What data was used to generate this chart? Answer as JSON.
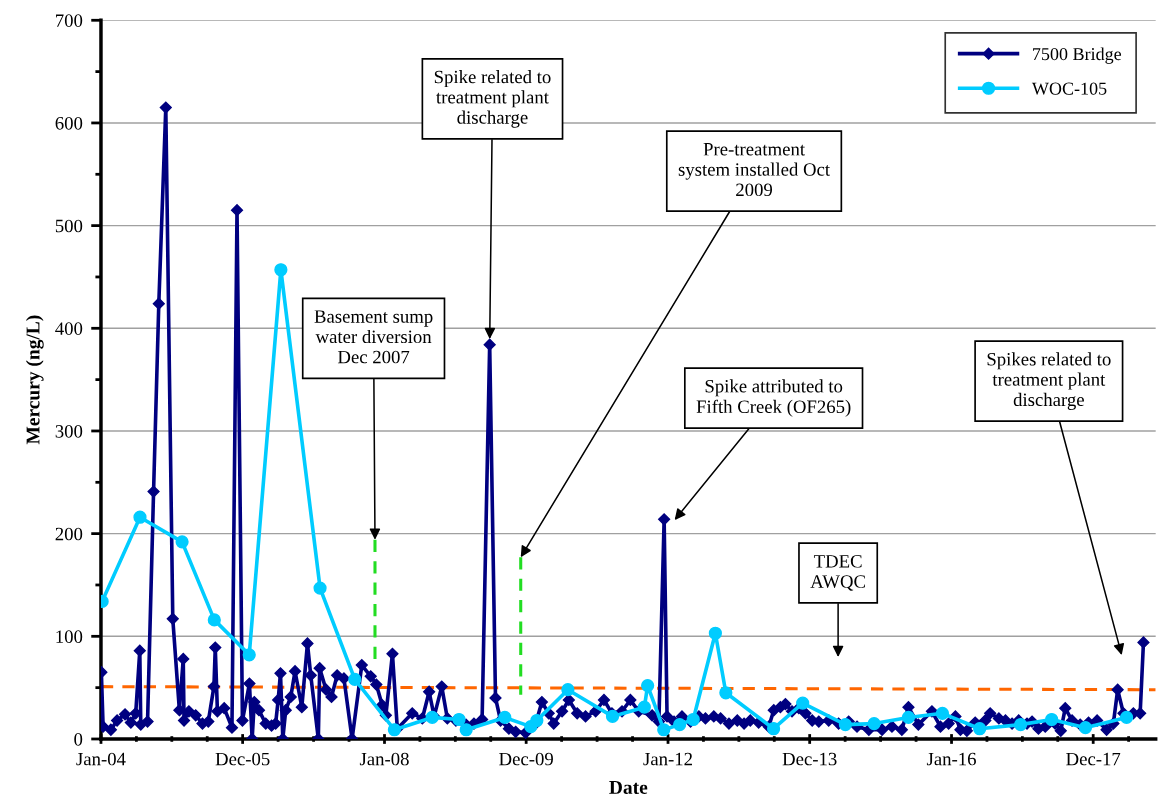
{
  "chart_data": {
    "type": "line",
    "xlabel": "Date",
    "ylabel": "Mercury (ng/L)",
    "xlim": [
      "2004-01-01",
      "2018-11-18"
    ],
    "xticks": [
      {
        "value": "2004-01-01",
        "label": "Jan-04"
      },
      {
        "value": "2005-12-31",
        "label": "Dec-05"
      },
      {
        "value": "2008-01-01",
        "label": "Jan-08"
      },
      {
        "value": "2009-12-31",
        "label": "Dec-09"
      },
      {
        "value": "2012-01-01",
        "label": "Jan-12"
      },
      {
        "value": "2013-12-31",
        "label": "Dec-13"
      },
      {
        "value": "2016-01-01",
        "label": "Jan-16"
      },
      {
        "value": "2017-12-31",
        "label": "Dec-17"
      }
    ],
    "ylim": [
      0,
      700
    ],
    "yticks": [
      0,
      100,
      200,
      300,
      400,
      500,
      600,
      700
    ],
    "grid": "y",
    "legend": "top right",
    "series": [
      {
        "name": "7500 Bridge",
        "color": "#000080",
        "marker": "diamond",
        "line_style": "solid",
        "x": [
          "2004-01-03",
          "2004-01-12",
          "2004-02-21",
          "2004-03-24",
          "2004-05-04",
          "2004-06-03",
          "2004-06-28",
          "2004-07-19",
          "2004-07-24",
          "2004-08-28",
          "2004-09-28",
          "2004-10-25",
          "2004-11-30",
          "2005-01-05",
          "2005-02-08",
          "2005-02-28",
          "2005-03-04",
          "2005-03-29",
          "2005-05-03",
          "2005-06-07",
          "2005-07-07",
          "2005-08-05",
          "2005-08-12",
          "2005-08-23",
          "2005-09-27",
          "2005-11-06",
          "2005-12-02",
          "2005-12-30",
          "2006-02-04",
          "2006-02-18",
          "2006-03-01",
          "2006-03-25",
          "2006-04-29",
          "2006-05-29",
          "2006-06-19",
          "2006-07-02",
          "2006-07-14",
          "2006-07-26",
          "2006-08-10",
          "2006-09-05",
          "2006-09-27",
          "2006-11-01",
          "2006-11-30",
          "2006-12-17",
          "2007-01-25",
          "2007-02-01",
          "2007-03-06",
          "2007-04-03",
          "2007-05-02",
          "2007-06-06",
          "2007-07-18",
          "2007-09-06",
          "2007-10-22",
          "2007-11-20",
          "2007-12-20",
          "2008-01-08",
          "2008-02-11",
          "2008-03-07",
          "2008-05-23",
          "2008-07-14",
          "2008-08-18",
          "2008-09-13",
          "2008-10-22",
          "2008-11-20",
          "2009-01-03",
          "2009-02-24",
          "2009-04-06",
          "2009-05-18",
          "2009-06-26",
          "2009-07-26",
          "2009-08-21",
          "2009-10-03",
          "2009-11-07",
          "2009-12-28",
          "2010-02-18",
          "2010-03-22",
          "2010-04-26",
          "2010-05-22",
          "2010-07-04",
          "2010-08-08",
          "2010-09-20",
          "2010-11-02",
          "2010-12-24",
          "2011-02-05",
          "2011-03-18",
          "2011-05-09",
          "2011-06-21",
          "2011-08-03",
          "2011-10-11",
          "2011-11-15",
          "2011-12-12",
          "2011-12-27",
          "2012-02-01",
          "2012-03-13",
          "2012-04-26",
          "2012-06-08",
          "2012-07-12",
          "2012-08-24",
          "2012-09-28",
          "2012-11-10",
          "2012-12-23",
          "2013-01-27",
          "2013-02-28",
          "2013-04-12",
          "2013-06-03",
          "2013-06-29",
          "2013-08-02",
          "2013-08-28",
          "2013-10-01",
          "2013-11-05",
          "2013-12-09",
          "2014-01-13",
          "2014-02-16",
          "2014-04-08",
          "2014-05-29",
          "2014-07-20",
          "2014-09-01",
          "2014-11-01",
          "2015-01-08",
          "2015-02-28",
          "2015-04-20",
          "2015-05-24",
          "2015-07-14",
          "2015-09-22",
          "2015-11-05",
          "2015-12-17",
          "2016-01-21",
          "2016-02-16",
          "2016-03-20",
          "2016-05-02",
          "2016-06-23",
          "2016-07-18",
          "2016-09-01",
          "2016-10-05",
          "2016-11-08",
          "2016-12-12",
          "2017-01-24",
          "2017-02-19",
          "2017-03-24",
          "2017-04-28",
          "2017-06-18",
          "2017-07-17",
          "2017-08-09",
          "2017-09-13",
          "2017-10-25",
          "2017-12-07",
          "2018-01-20",
          "2018-03-10",
          "2018-04-14",
          "2018-05-06",
          "2018-06-05",
          "2018-07-26",
          "2018-08-30",
          "2018-09-16"
        ],
        "values": [
          65,
          12,
          9,
          18,
          24,
          16,
          25,
          86,
          14,
          17,
          241,
          424,
          615,
          117,
          28,
          78,
          18,
          27,
          23,
          15,
          17,
          51,
          89,
          27,
          30,
          11,
          515,
          18,
          54,
          0,
          36,
          28,
          15,
          13,
          15,
          38,
          64,
          0,
          28,
          41,
          66,
          31,
          93,
          62,
          0,
          69,
          48,
          41,
          62,
          59,
          0,
          72,
          61,
          53,
          33,
          23,
          83,
          10,
          25,
          20,
          46,
          22,
          51,
          20,
          18,
          14,
          15,
          19,
          384,
          40,
          18,
          10,
          7,
          6,
          15,
          36,
          25,
          15,
          27,
          38,
          25,
          22,
          27,
          38,
          25,
          27,
          38,
          27,
          23,
          17,
          214,
          22,
          17,
          22,
          17,
          22,
          20,
          22,
          20,
          15,
          18,
          15,
          18,
          16,
          12,
          28,
          31,
          34,
          27,
          30,
          25,
          18,
          17,
          18,
          15,
          17,
          12,
          9,
          9,
          12,
          9,
          31,
          14,
          27,
          12,
          15,
          22,
          9,
          8,
          16,
          18,
          25,
          20,
          18,
          15,
          18,
          15,
          17,
          10,
          12,
          15,
          8,
          30,
          18,
          14,
          16,
          18,
          9,
          15,
          48,
          25,
          25,
          25,
          94
        ]
      },
      {
        "name": "WOC-105",
        "color": "#00ccff",
        "marker": "circle",
        "line_style": "solid",
        "x": [
          "2004-01-07",
          "2004-07-20",
          "2005-02-22",
          "2005-08-07",
          "2006-02-03",
          "2006-07-16",
          "2007-02-03",
          "2007-08-01",
          "2008-02-21",
          "2008-09-03",
          "2009-01-19",
          "2009-02-25",
          "2009-09-12",
          "2010-01-24",
          "2010-02-24",
          "2010-08-03",
          "2011-03-21",
          "2011-09-01",
          "2011-09-18",
          "2011-12-10",
          "2012-03-01",
          "2012-05-10",
          "2012-09-01",
          "2012-10-25",
          "2013-06-28",
          "2013-11-25",
          "2014-07-03",
          "2014-11-28",
          "2015-05-24",
          "2015-11-15",
          "2016-05-25",
          "2016-12-22",
          "2017-05-31",
          "2017-11-21",
          "2018-06-21"
        ],
        "values": [
          134,
          216,
          192,
          116,
          82,
          457,
          147,
          58,
          9,
          21,
          19,
          9,
          21,
          12,
          18,
          48,
          22,
          31,
          52,
          9,
          14,
          19,
          103,
          45,
          10,
          35,
          14,
          15,
          21,
          25,
          10,
          14,
          19,
          11,
          21
        ]
      },
      {
        "color": "#ff6600",
        "marker": "none",
        "line_style": "dashed",
        "x": [
          "2004-01-01",
          "2018-11-18"
        ],
        "values": [
          51,
          48
        ]
      },
      {
        "color": "#22dd22",
        "marker": "none",
        "line_style": "dashed",
        "x": [
          "2007-11-13",
          "2007-11-13"
        ],
        "values": [
          194,
          77
        ]
      },
      {
        "color": "#22dd22",
        "marker": "none",
        "line_style": "dashed",
        "x": [
          "2009-12-03",
          "2009-12-03"
        ],
        "values": [
          177,
          43
        ]
      }
    ],
    "annotations": [
      {
        "text": "Spike related to\ntreatment plant\ndischarge",
        "x": "2009-06-26",
        "y": 384
      },
      {
        "text": "Basement sump\nwater diversion\nDec 2007",
        "x": "2007-11-13",
        "y": 194
      },
      {
        "text": "Pre-treatment\nsystem installed Oct\n2009",
        "x": "2009-12-03",
        "y": 177
      },
      "Spike attributed to\nFifth Creek (OF265)",
      "TDEC\nAWQC",
      "Spikes related to\ntreatment plant\ndischarge"
    ]
  }
}
